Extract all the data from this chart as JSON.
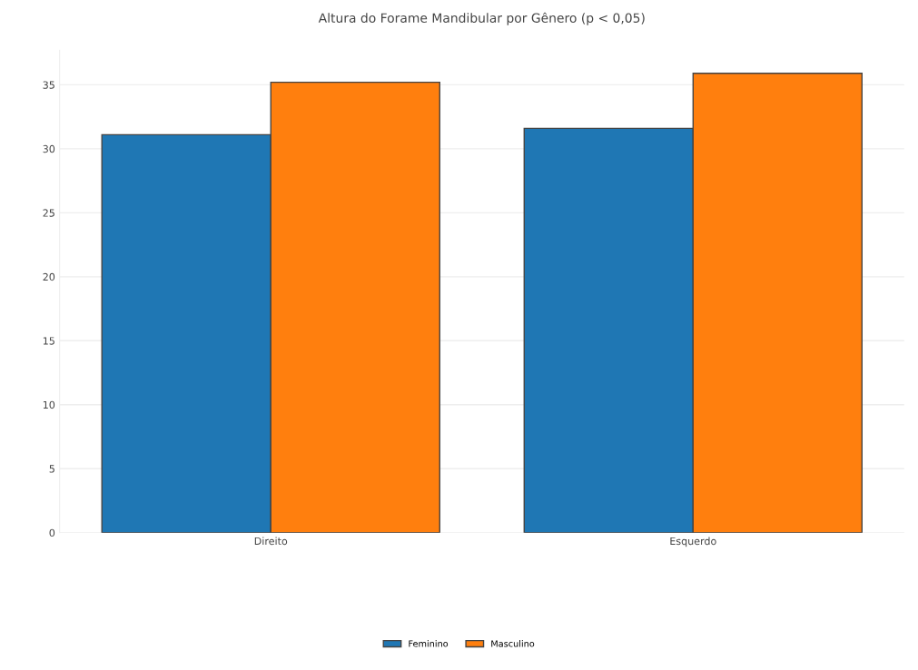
{
  "chart_data": {
    "type": "bar",
    "title": "Altura do Forame Mandibular por Gênero (p < 0,05)",
    "categories": [
      "Direito",
      "Esquerdo"
    ],
    "series": [
      {
        "name": "Feminino",
        "color": "#1f77b4",
        "values": [
          31.1,
          31.6
        ]
      },
      {
        "name": "Masculino",
        "color": "#ff7f0e",
        "values": [
          35.2,
          35.9
        ]
      }
    ],
    "ylim": [
      0,
      37.7
    ],
    "yticks": [
      0,
      5,
      10,
      15,
      20,
      25,
      30,
      35
    ],
    "grid": "y",
    "legend": "bottom"
  }
}
